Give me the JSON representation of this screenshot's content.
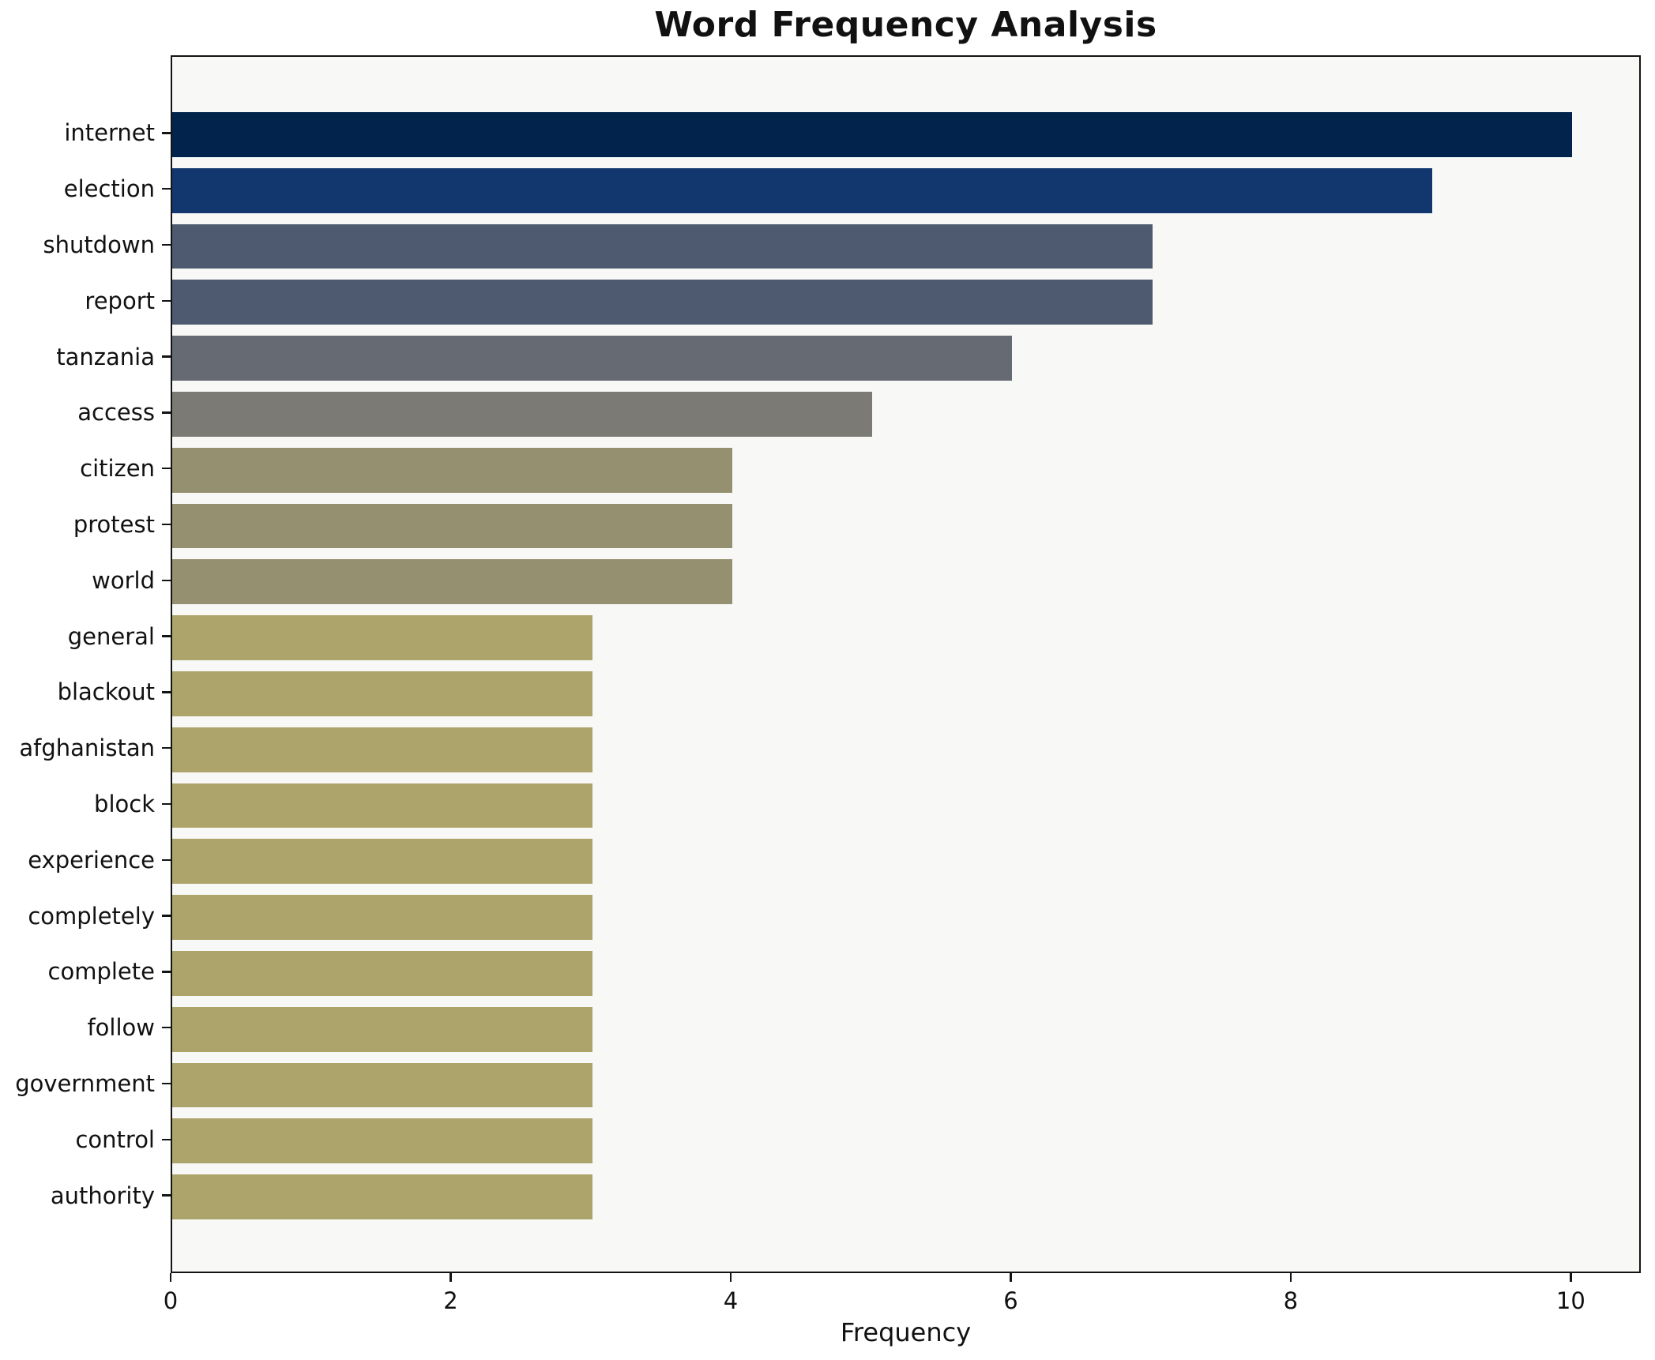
{
  "chart_data": {
    "type": "bar",
    "orientation": "horizontal",
    "title": "Word Frequency Analysis",
    "xlabel": "Frequency",
    "ylabel": "",
    "categories": [
      "internet",
      "election",
      "shutdown",
      "report",
      "tanzania",
      "access",
      "citizen",
      "protest",
      "world",
      "general",
      "blackout",
      "afghanistan",
      "block",
      "experience",
      "completely",
      "complete",
      "follow",
      "government",
      "control",
      "authority"
    ],
    "values": [
      10,
      9,
      7,
      7,
      6,
      5,
      4,
      4,
      4,
      3,
      3,
      3,
      3,
      3,
      3,
      3,
      3,
      3,
      3,
      3
    ],
    "bar_colors": [
      "#02234c",
      "#12376e",
      "#4e5a70",
      "#4e5a70",
      "#666a73",
      "#7b7a74",
      "#95906f",
      "#95906f",
      "#95906f",
      "#ada46b",
      "#ada46b",
      "#ada46b",
      "#ada46b",
      "#ada46b",
      "#ada46b",
      "#ada46b",
      "#ada46b",
      "#ada46b",
      "#ada46b",
      "#ada46b"
    ],
    "xlim": [
      0,
      10.5
    ],
    "x_ticks": [
      0,
      2,
      4,
      6,
      8,
      10
    ],
    "grid": false,
    "legend": null,
    "plot_background": "#f8f8f7",
    "figure_background": "#ffffff",
    "spine_color": "#141414",
    "bar_fraction": 0.8
  }
}
